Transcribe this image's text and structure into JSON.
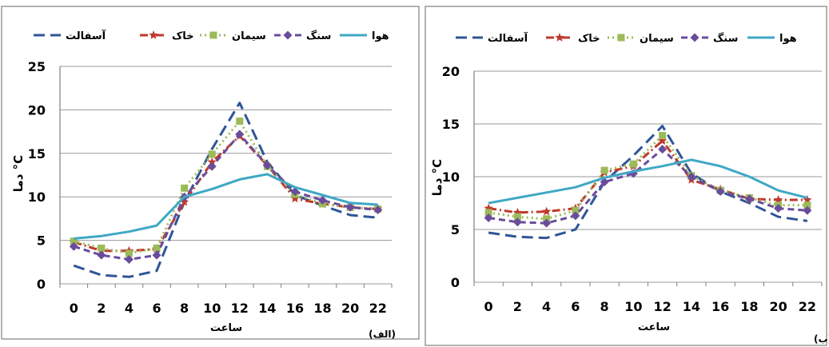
{
  "colors": {
    "asphalt": "#2F5597",
    "soil": "#C0392B",
    "cement": "#9BBB59",
    "stone": "#6A4C9C",
    "air": "#3FA8C4",
    "grid": "#9A9A9A",
    "frame": "#7F7F7F"
  },
  "chart_data": [
    {
      "type": "line",
      "panel_label": "(الف)",
      "xlabel": "ساعت",
      "ylabel": "دما °C",
      "x": [
        0,
        2,
        4,
        6,
        8,
        10,
        12,
        14,
        16,
        18,
        20,
        22
      ],
      "ylim": [
        0,
        25
      ],
      "yticks": [
        0,
        5,
        10,
        15,
        20,
        25
      ],
      "grid": true,
      "legend_position": "top",
      "series": [
        {
          "key": "asphalt",
          "name": "آسفالت",
          "style": "dashed-long",
          "marker": "none",
          "values": [
            2.1,
            1.0,
            0.8,
            1.5,
            9.4,
            15.5,
            20.8,
            14.0,
            10.2,
            9.0,
            7.9,
            7.6
          ]
        },
        {
          "key": "soil",
          "name": "خاک",
          "style": "dash-dot",
          "marker": "star",
          "values": [
            4.8,
            3.8,
            3.8,
            4.0,
            9.4,
            14.0,
            17.0,
            13.6,
            9.8,
            9.2,
            8.8,
            8.6
          ]
        },
        {
          "key": "cement",
          "name": "سیمان",
          "style": "dotted",
          "marker": "square",
          "values": [
            4.9,
            4.1,
            3.5,
            4.1,
            11.0,
            14.9,
            18.7,
            13.5,
            10.3,
            9.2,
            8.8,
            8.6
          ]
        },
        {
          "key": "stone",
          "name": "سنگ",
          "style": "dashed",
          "marker": "diamond",
          "values": [
            4.3,
            3.3,
            2.8,
            3.3,
            10.0,
            13.5,
            17.2,
            13.6,
            10.6,
            9.6,
            8.8,
            8.5
          ]
        },
        {
          "key": "air",
          "name": "هوا",
          "style": "solid",
          "marker": "none",
          "values": [
            5.2,
            5.5,
            6.0,
            6.7,
            10.0,
            10.9,
            12.0,
            12.6,
            11.1,
            10.2,
            9.3,
            9.1
          ]
        }
      ]
    },
    {
      "type": "line",
      "panel_label": "(ب)",
      "xlabel": "ساعت",
      "ylabel": "دما °C",
      "x": [
        0,
        2,
        4,
        6,
        8,
        10,
        12,
        14,
        16,
        18,
        20,
        22
      ],
      "ylim": [
        0,
        20
      ],
      "yticks": [
        0,
        5,
        10,
        15,
        20
      ],
      "grid": true,
      "legend_position": "top",
      "series": [
        {
          "key": "asphalt",
          "name": "آسفالت",
          "style": "dashed-long",
          "marker": "none",
          "values": [
            4.7,
            4.3,
            4.2,
            5.0,
            9.5,
            12.0,
            14.8,
            10.3,
            8.6,
            7.5,
            6.2,
            5.8
          ]
        },
        {
          "key": "soil",
          "name": "خاک",
          "style": "dash-dot",
          "marker": "star",
          "values": [
            7.0,
            6.6,
            6.7,
            7.0,
            10.4,
            11.0,
            13.4,
            9.7,
            8.8,
            7.9,
            7.8,
            7.8
          ]
        },
        {
          "key": "cement",
          "name": "سیمان",
          "style": "dotted",
          "marker": "square",
          "values": [
            6.6,
            6.2,
            6.0,
            6.8,
            10.6,
            11.2,
            13.9,
            10.1,
            8.7,
            8.0,
            7.3,
            7.3
          ]
        },
        {
          "key": "stone",
          "name": "سنگ",
          "style": "dashed",
          "marker": "diamond",
          "values": [
            6.1,
            5.7,
            5.6,
            6.3,
            9.5,
            10.3,
            12.6,
            10.0,
            8.6,
            7.9,
            7.0,
            6.8
          ]
        },
        {
          "key": "air",
          "name": "هوا",
          "style": "solid",
          "marker": "none",
          "values": [
            7.5,
            8.0,
            8.5,
            9.0,
            9.9,
            10.5,
            11.0,
            11.6,
            11.0,
            10.0,
            8.7,
            8.0
          ]
        }
      ]
    }
  ]
}
